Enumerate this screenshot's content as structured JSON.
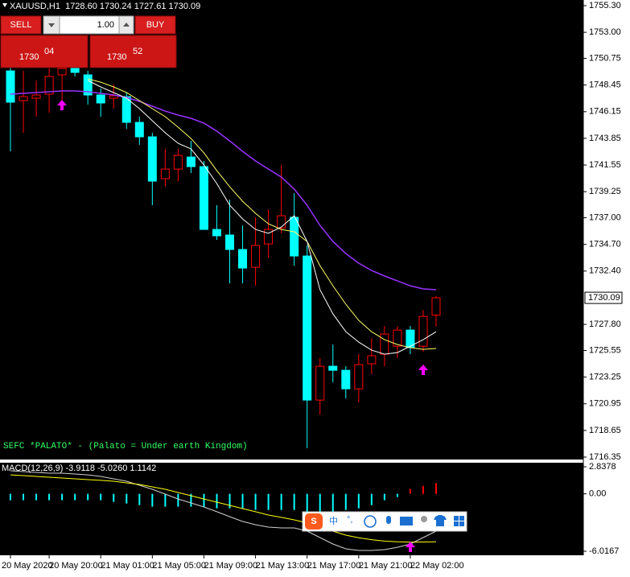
{
  "trade_panel": {
    "sell": "SELL",
    "buy": "BUY",
    "lots": "1.00",
    "sell_price": "1730",
    "sell_pips": "04",
    "buy_price": "1730",
    "buy_pips": "52"
  },
  "chart_data": [
    {
      "type": "candlestick",
      "title": "XAUUSD,H1  1728.60 1730.24 1727.61 1730.09",
      "annotation": "SEFC *PALATO* - (Palato = Under earth Kingdom)",
      "categories": [
        "20 May 2020",
        null,
        null,
        "20 May 20:00",
        null,
        null,
        null,
        "21 May 01:00",
        null,
        null,
        null,
        "21 May 05:00",
        null,
        null,
        null,
        "21 May 09:00",
        null,
        null,
        null,
        "21 May 13:00",
        null,
        null,
        null,
        "21 May 17:00",
        null,
        null,
        null,
        "21 May 21:00",
        null,
        null,
        null,
        "22 May 02:00",
        null,
        null
      ],
      "open": [
        1749.67,
        1747.11,
        1747.31,
        1747.66,
        1749.33,
        1749.88,
        1749.33,
        1747.59,
        1747.31,
        1747.45,
        1745.23,
        1743.98,
        1740.37,
        1741.2,
        1742.24,
        1741.41,
        1735.99,
        1735.51,
        1734.26,
        1732.73,
        1734.74,
        1736.13,
        1737.04,
        1733.7,
        1721.27,
        1724.19,
        1723.84,
        1722.24,
        1724.4,
        1725.23,
        1725.92,
        1727.31,
        1725.92,
        1728.6
      ],
      "high": [
        1750.23,
        1749.67,
        1748.84,
        1749.88,
        1750.58,
        1750.23,
        1749.67,
        1748.15,
        1748.49,
        1747.8,
        1745.72,
        1744.33,
        1742.94,
        1742.94,
        1743.63,
        1741.9,
        1738.08,
        1738.56,
        1736.34,
        1737.04,
        1737.73,
        1741.55,
        1739.12,
        1734.61,
        1724.88,
        1726.06,
        1724.19,
        1725.23,
        1726.62,
        1727.66,
        1727.66,
        1727.66,
        1729.05,
        1730.24
      ],
      "low": [
        1742.73,
        1744.33,
        1745.72,
        1746.06,
        1746.76,
        1749.19,
        1746.76,
        1745.72,
        1746.41,
        1744.67,
        1743.29,
        1738.08,
        1739.67,
        1740.16,
        1740.86,
        1735.99,
        1735.09,
        1731.34,
        1731.34,
        1731.13,
        1733.56,
        1735.65,
        1732.87,
        1717.11,
        1720.02,
        1722.8,
        1721.41,
        1721.06,
        1723.49,
        1724.19,
        1724.88,
        1725.23,
        1725.44,
        1727.61
      ],
      "close": [
        1746.97,
        1747.45,
        1747.59,
        1749.19,
        1749.88,
        1749.54,
        1747.59,
        1746.9,
        1747.52,
        1745.23,
        1743.98,
        1740.16,
        1741.2,
        1742.38,
        1741.41,
        1735.99,
        1735.44,
        1734.26,
        1732.66,
        1734.61,
        1735.99,
        1737.17,
        1733.7,
        1721.27,
        1724.19,
        1723.84,
        1722.24,
        1724.33,
        1725.09,
        1726.97,
        1727.31,
        1725.79,
        1728.49,
        1730.09
      ],
      "up_color": "#ff0000",
      "down_color": "#00ffff",
      "series": [
        {
          "color": "#9933ff",
          "values": [
            1747.66,
            1747.73,
            1747.8,
            1747.87,
            1747.94,
            1747.94,
            1747.87,
            1747.73,
            1747.59,
            1747.38,
            1747.04,
            1746.62,
            1746.2,
            1745.86,
            1745.58,
            1745.16,
            1744.47,
            1743.63,
            1742.73,
            1741.9,
            1741.2,
            1740.51,
            1739.47,
            1738.08,
            1736.34,
            1734.95,
            1733.91,
            1733.08,
            1732.45,
            1731.97,
            1731.55,
            1731.13,
            1730.86,
            1730.79
          ]
        },
        {
          "color": "#ffff66",
          "values": [
            null,
            null,
            null,
            null,
            null,
            null,
            1748.98,
            1748.7,
            1748.29,
            1747.8,
            1747.11,
            1746.41,
            1745.72,
            1744.81,
            1743.84,
            1742.59,
            1741.06,
            1739.67,
            1738.42,
            1737.38,
            1736.48,
            1735.99,
            1735.79,
            1734.95,
            1732.87,
            1731.13,
            1729.54,
            1728.15,
            1727.17,
            1726.48,
            1726.06,
            1725.79,
            1725.65,
            1725.72
          ]
        },
        {
          "color": "#ffffff",
          "values": [
            null,
            null,
            null,
            null,
            null,
            null,
            1748.84,
            1748.29,
            1747.8,
            1747.31,
            1746.41,
            1745.37,
            1744.33,
            1743.42,
            1742.94,
            1741.55,
            1739.95,
            1738.08,
            1736.9,
            1735.99,
            1735.65,
            1736.2,
            1737.17,
            1734.95,
            1730.79,
            1728.7,
            1727.17,
            1726.27,
            1725.58,
            1725.23,
            1725.37,
            1725.92,
            1726.48,
            1727.17
          ]
        }
      ],
      "ylim": [
        1716.35,
        1755.3
      ],
      "yticks": [
        {
          "value": 1755.3,
          "label": "1755.30"
        },
        {
          "value": 1753,
          "label": "1753.00"
        },
        1750.75,
        1748.45,
        1746.15,
        1743.85,
        1741.55,
        1739.25,
        {
          "value": 1737,
          "label": "1737.00"
        },
        {
          "value": 1734.7,
          "label": "1734.70"
        },
        {
          "value": 1732.4,
          "label": "1732.40"
        },
        {
          "value": 1727.8,
          "label": "1727.80"
        },
        1725.55,
        1723.25,
        1720.95,
        1718.65,
        1716.35
      ],
      "last_price": 1730.09,
      "grid": false
    },
    {
      "type": "macd",
      "title": "MACD(12,26,9) -3.9118 -5.0260 1.1142",
      "values": [
        -0.67,
        -0.67,
        -0.67,
        -0.67,
        -0.67,
        -0.67,
        -0.67,
        -0.67,
        -0.84,
        -1.01,
        -1.18,
        -1.35,
        -1.35,
        -1.35,
        -1.35,
        -1.35,
        -1.52,
        -1.52,
        -1.52,
        -1.69,
        -1.69,
        -1.69,
        -1.69,
        -1.85,
        -1.85,
        -1.85,
        -1.69,
        -1.52,
        -1.18,
        -0.67,
        -0.34,
        0.51,
        0.84,
        1.1142
      ],
      "positive_color": "#ff0000",
      "negative_color": "#00ffff",
      "series": [
        {
          "color": "#d0d0d0",
          "values": [
            2.42,
            2.33,
            2.25,
            2.16,
            2.16,
            2.08,
            1.99,
            1.83,
            1.57,
            1.32,
            0.9,
            0.48,
            -0.03,
            -0.54,
            -0.96,
            -1.38,
            -1.88,
            -2.39,
            -2.9,
            -3.23,
            -3.49,
            -3.57,
            -3.57,
            -3.91,
            -4.58,
            -5.26,
            -5.76,
            -5.93,
            -5.93,
            -5.85,
            -5.6,
            -5.26,
            -4.58,
            -3.9118
          ]
        },
        {
          "color": "#ffff00",
          "values": [
            1.99,
            1.91,
            1.83,
            1.74,
            1.66,
            1.57,
            1.49,
            1.41,
            1.32,
            1.15,
            0.98,
            0.73,
            0.48,
            0.14,
            -0.2,
            -0.54,
            -0.87,
            -1.21,
            -1.55,
            -1.88,
            -2.22,
            -2.47,
            -2.73,
            -3.06,
            -3.49,
            -3.91,
            -4.33,
            -4.6,
            -4.8,
            -4.95,
            -5.03,
            -5.06,
            -5.05,
            -5.026
          ]
        }
      ],
      "ylim": [
        -6.0167,
        2.8378
      ],
      "yticks": [
        2.8378,
        {
          "value": 0,
          "label": "0.00"
        },
        -6.0167
      ],
      "grid": false
    }
  ],
  "ime_toolbar": {
    "logo": "S",
    "mode": "中",
    "punct": "°,"
  }
}
